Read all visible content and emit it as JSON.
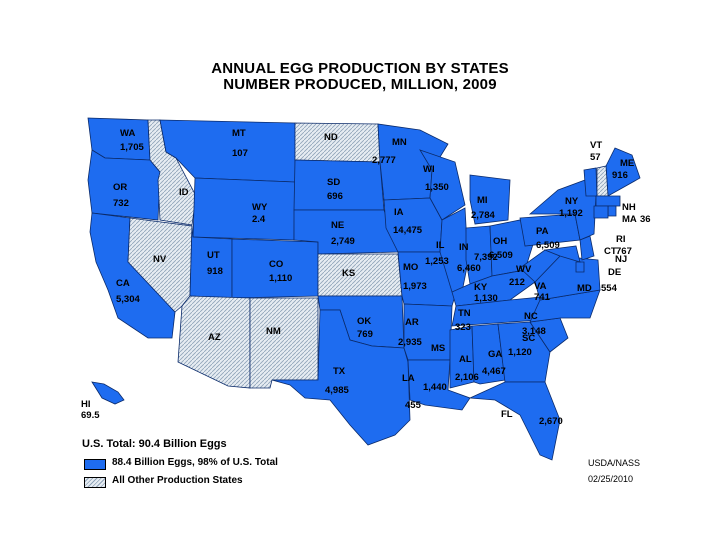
{
  "title_line1": "ANNUAL EGG PRODUCTION BY STATES",
  "title_line2": "NUMBER PRODUCED, MILLION, 2009",
  "colors": {
    "major": "#1e6cf0",
    "other": "#e6ecf2",
    "border": "#0a2a6a"
  },
  "states": [
    {
      "abbr": "WA",
      "value": "1,705",
      "group": "major"
    },
    {
      "abbr": "OR",
      "value": "732",
      "group": "major"
    },
    {
      "abbr": "CA",
      "value": "5,304",
      "group": "major"
    },
    {
      "abbr": "ID",
      "value": "",
      "group": "other"
    },
    {
      "abbr": "NV",
      "value": "",
      "group": "other"
    },
    {
      "abbr": "MT",
      "value": "107",
      "group": "major"
    },
    {
      "abbr": "WY",
      "value": "2.4",
      "group": "major"
    },
    {
      "abbr": "UT",
      "value": "918",
      "group": "major"
    },
    {
      "abbr": "CO",
      "value": "1,110",
      "group": "major"
    },
    {
      "abbr": "AZ",
      "value": "",
      "group": "other"
    },
    {
      "abbr": "NM",
      "value": "",
      "group": "other"
    },
    {
      "abbr": "ND",
      "value": "",
      "group": "other"
    },
    {
      "abbr": "SD",
      "value": "696",
      "group": "major"
    },
    {
      "abbr": "NE",
      "value": "2,749",
      "group": "major"
    },
    {
      "abbr": "KS",
      "value": "",
      "group": "other"
    },
    {
      "abbr": "OK",
      "value": "769",
      "group": "major"
    },
    {
      "abbr": "TX",
      "value": "4,985",
      "group": "major"
    },
    {
      "abbr": "MN",
      "value": "2,777",
      "group": "major"
    },
    {
      "abbr": "IA",
      "value": "14,475",
      "group": "major"
    },
    {
      "abbr": "MO",
      "value": "1,973",
      "group": "major"
    },
    {
      "abbr": "AR",
      "value": "2,935",
      "group": "major"
    },
    {
      "abbr": "LA",
      "value": "455",
      "group": "major"
    },
    {
      "abbr": "WI",
      "value": "1,350",
      "group": "major"
    },
    {
      "abbr": "IL",
      "value": "1,253",
      "group": "major"
    },
    {
      "abbr": "MI",
      "value": "2,784",
      "group": "major"
    },
    {
      "abbr": "IN",
      "value": "7,392",
      "group": "major"
    },
    {
      "abbr": "OH",
      "value": "6,509",
      "group": "major"
    },
    {
      "abbr": "KY",
      "value": "1,130",
      "group": "major"
    },
    {
      "abbr": "TN",
      "value": "323",
      "group": "major"
    },
    {
      "abbr": "MS",
      "value": "1,440",
      "group": "major"
    },
    {
      "abbr": "AL",
      "value": "2,106",
      "group": "major"
    },
    {
      "abbr": "GA",
      "value": "4,467",
      "group": "major"
    },
    {
      "abbr": "FL",
      "value": "2,670",
      "group": "major"
    },
    {
      "abbr": "SC",
      "value": "1,120",
      "group": "major"
    },
    {
      "abbr": "NC",
      "value": "3,148",
      "group": "major"
    },
    {
      "abbr": "VA",
      "value": "741",
      "group": "major"
    },
    {
      "abbr": "WV",
      "value": "212",
      "group": "major"
    },
    {
      "abbr": "PA",
      "value": "6,509",
      "group": "major"
    },
    {
      "abbr": "NY",
      "value": "1,192",
      "group": "major"
    },
    {
      "abbr": "VT",
      "value": "57",
      "group": "major"
    },
    {
      "abbr": "ME",
      "value": "916",
      "group": "major"
    },
    {
      "abbr": "NH",
      "value": "",
      "group": "other"
    },
    {
      "abbr": "MA",
      "value": "36",
      "group": "major"
    },
    {
      "abbr": "RI",
      "value": "",
      "group": "major"
    },
    {
      "abbr": "CT",
      "value": "767",
      "group": "major"
    },
    {
      "abbr": "NJ",
      "value": "",
      "group": "major"
    },
    {
      "abbr": "DE",
      "value": "",
      "group": "major"
    },
    {
      "abbr": "MD",
      "value": "554",
      "group": "major"
    },
    {
      "abbr": "HI",
      "value": "69.5",
      "group": "major"
    }
  ],
  "extra_values": {
    "indiana_secondary": "6,460"
  },
  "footer": {
    "total": "U.S. Total: 90.4 Billion Eggs",
    "legend_major": "88.4 Billion Eggs, 98% of U.S. Total",
    "legend_other": "All Other Production States",
    "source": "USDA/NASS",
    "date": "02/25/2010"
  }
}
